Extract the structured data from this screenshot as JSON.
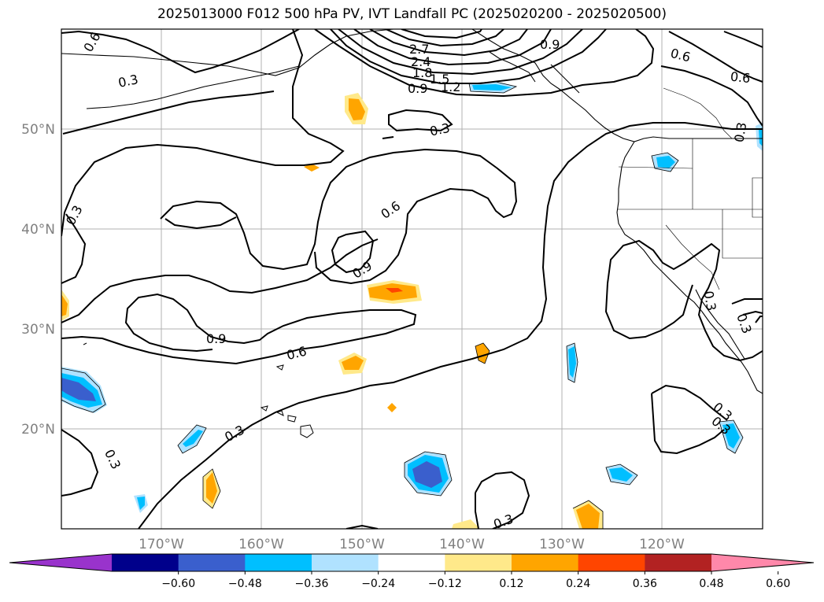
{
  "title": "2025013000 F012 500 hPa PV, IVT Landfall PC (2025020200 - 2025020500)",
  "map": {
    "projection": "PlateCarree",
    "lon_range": [
      -180,
      -110
    ],
    "lat_range": [
      10,
      60
    ],
    "lon_ticks": [
      "170°W",
      "160°W",
      "150°W",
      "140°W",
      "130°W",
      "120°W"
    ],
    "lat_ticks": [
      "50°N",
      "40°N",
      "30°N",
      "20°N"
    ],
    "grid": true,
    "coastlines": true,
    "state_borders": true
  },
  "contour_labels": [
    "0.6",
    "0.3",
    "2.7",
    "2.4",
    "1.8",
    "1.5",
    "1.2",
    "0.9",
    "0.9",
    "0.6",
    "0.6",
    "0.3",
    "0.3",
    "0.6",
    "0.9",
    "0.3",
    "0.9",
    "0.6",
    "0.3",
    "0.3",
    "0.3",
    "0.3",
    "0.3",
    "0.3",
    "0.3"
  ],
  "colorbar": {
    "ticks": [
      "−0.60",
      "−0.48",
      "−0.36",
      "−0.24",
      "−0.12",
      "0.12",
      "0.24",
      "0.36",
      "0.48",
      "0.60"
    ],
    "colors": [
      "#9933cc",
      "#00008b",
      "#3a5fcd",
      "#00bfff",
      "#b0e2ff",
      "#ffffff",
      "#ffe98a",
      "#ffa500",
      "#ff4500",
      "#b22222",
      "#ff88aa"
    ],
    "extend": "both"
  },
  "chart_data": {
    "type": "map",
    "title": "2025013000 F012 500 hPa PV, IVT Landfall PC (2025020200 - 2025020500)",
    "contour_field": "500 hPa PV",
    "contour_levels": [
      0.3,
      0.6,
      0.9,
      1.2,
      1.5,
      1.8,
      2.4,
      2.7
    ],
    "filled_field": "IVT Landfall PC",
    "filled_levels": [
      -0.6,
      -0.48,
      -0.36,
      -0.24,
      -0.12,
      0.12,
      0.24,
      0.36,
      0.48,
      0.6
    ]
  }
}
